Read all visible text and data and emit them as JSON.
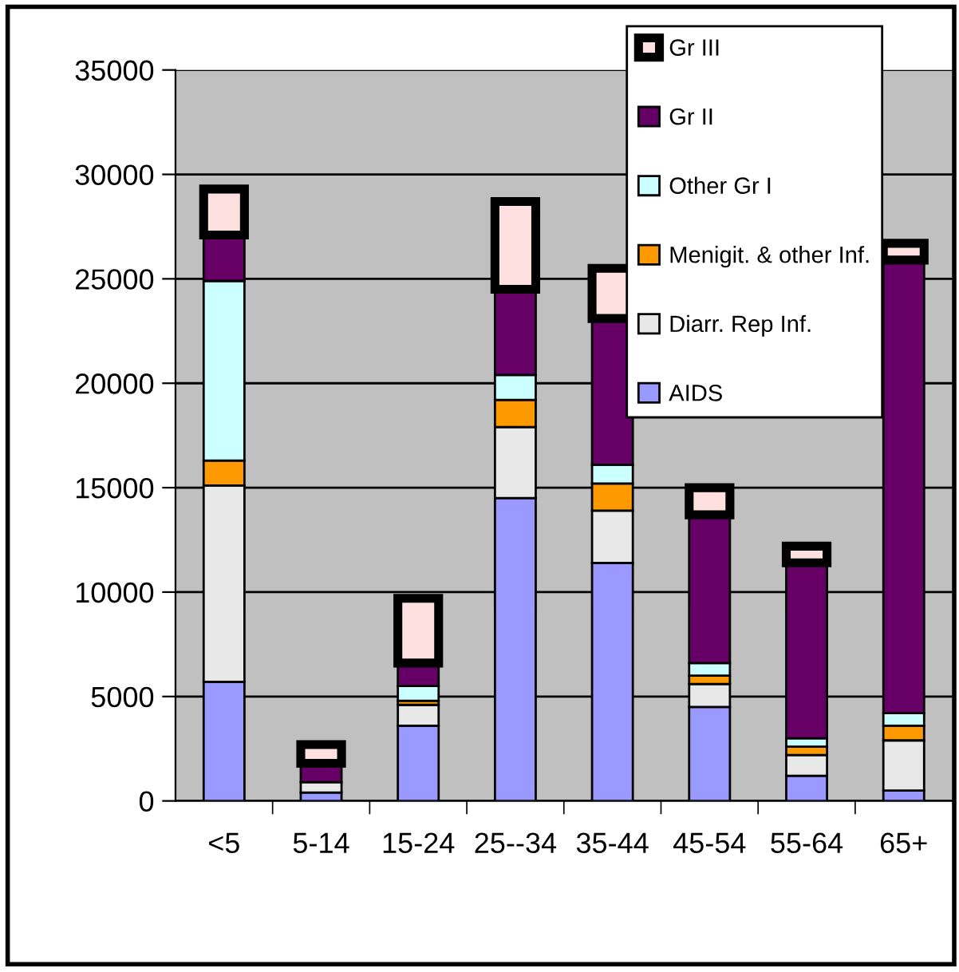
{
  "chart_data": {
    "type": "bar",
    "stacked": true,
    "categories": [
      "<5",
      "5-14",
      "15-24",
      "25--34",
      "35-44",
      "45-54",
      "55-64",
      "65+"
    ],
    "series": [
      {
        "name": "AIDS",
        "color": "#9999ff",
        "values": [
          5700,
          400,
          3600,
          14500,
          11400,
          4500,
          1200,
          500
        ]
      },
      {
        "name": "Diarr. Rep Inf.",
        "color": "#e8e8e8",
        "values": [
          9400,
          500,
          1000,
          3400,
          2500,
          1100,
          1000,
          2400
        ]
      },
      {
        "name": "Menigit. & other Inf.",
        "color": "#ff9900",
        "values": [
          1200,
          null,
          200,
          1300,
          1300,
          400,
          400,
          700
        ]
      },
      {
        "name": "Other Gr I",
        "color": "#ccffff",
        "values": [
          8600,
          null,
          700,
          1200,
          900,
          600,
          400,
          600
        ]
      },
      {
        "name": "Gr II",
        "color": "#660066",
        "values": [
          2200,
          900,
          1100,
          4100,
          7000,
          7100,
          8400,
          21700
        ]
      },
      {
        "name": "Gr III",
        "color": "#ffe0e0",
        "values": [
          2200,
          900,
          3100,
          4200,
          2400,
          1300,
          800,
          800
        ]
      }
    ],
    "ylim": [
      0,
      35000
    ],
    "yticks": [
      0,
      5000,
      10000,
      15000,
      20000,
      25000,
      30000,
      35000
    ],
    "grid": "y",
    "legend": "top right"
  }
}
